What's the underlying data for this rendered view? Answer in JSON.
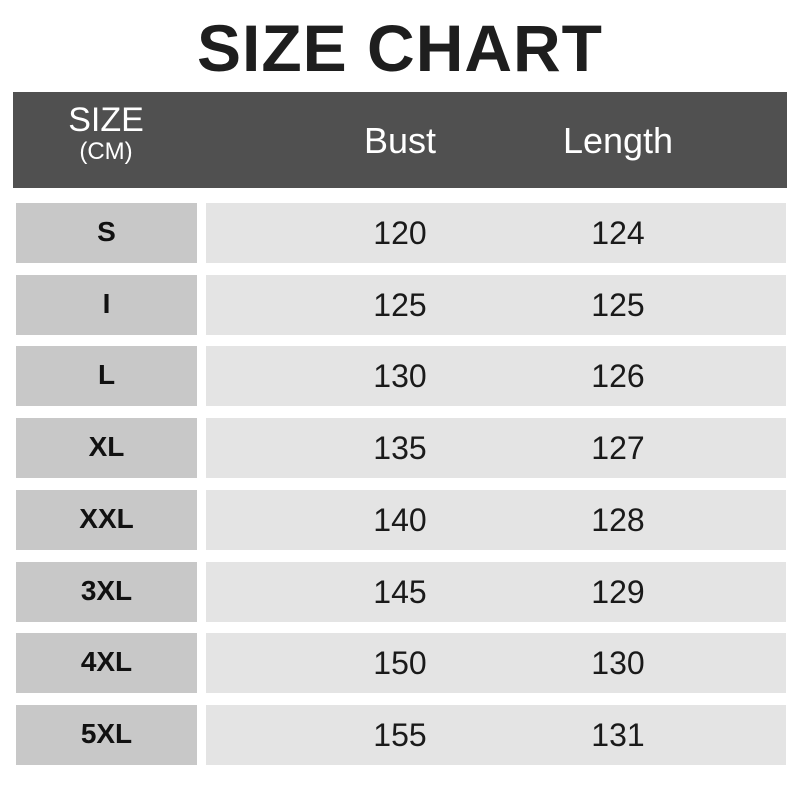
{
  "title": "SIZE CHART",
  "header": {
    "size": "SIZE",
    "unit": "(CM)",
    "bust": "Bust",
    "length": "Length"
  },
  "rows": [
    {
      "size": "S",
      "bust": "120",
      "length": "124"
    },
    {
      "size": "I",
      "bust": "125",
      "length": "125"
    },
    {
      "size": "L",
      "bust": "130",
      "length": "126"
    },
    {
      "size": "XL",
      "bust": "135",
      "length": "127"
    },
    {
      "size": "XXL",
      "bust": "140",
      "length": "128"
    },
    {
      "size": "3XL",
      "bust": "145",
      "length": "129"
    },
    {
      "size": "4XL",
      "bust": "150",
      "length": "130"
    },
    {
      "size": "5XL",
      "bust": "155",
      "length": "131"
    }
  ]
}
